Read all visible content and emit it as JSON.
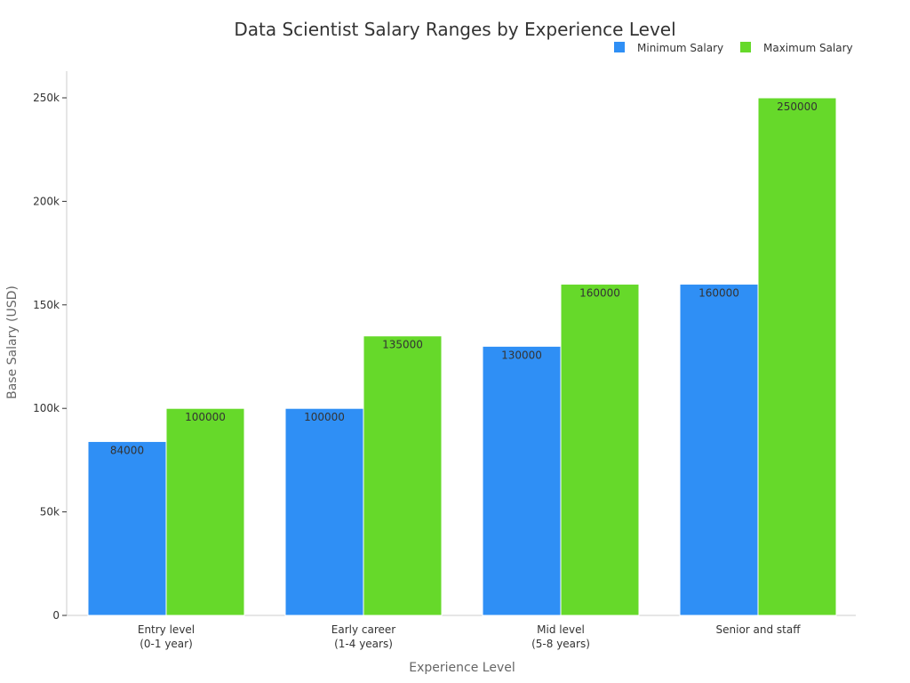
{
  "chart_data": {
    "type": "bar",
    "title": "Data Scientist Salary Ranges by Experience Level",
    "xlabel": "Experience Level",
    "ylabel": "Base Salary (USD)",
    "categories": [
      [
        "Entry level",
        "(0-1 year)"
      ],
      [
        "Early career",
        "(1-4 years)"
      ],
      [
        "Mid level",
        "(5-8 years)"
      ],
      [
        "Senior and staff"
      ]
    ],
    "series": [
      {
        "name": "Minimum Salary",
        "color": "#2f8ff5",
        "values": [
          84000,
          100000,
          130000,
          160000
        ]
      },
      {
        "name": "Maximum Salary",
        "color": "#66d92a",
        "values": [
          100000,
          135000,
          160000,
          250000
        ]
      }
    ],
    "ylim": [
      0,
      260000
    ],
    "yticks": [
      0,
      50000,
      100000,
      150000,
      200000,
      250000
    ],
    "ytick_labels": [
      "0",
      "50k",
      "100k",
      "150k",
      "200k",
      "250k"
    ],
    "legend_position": "top-right",
    "grid": false
  }
}
